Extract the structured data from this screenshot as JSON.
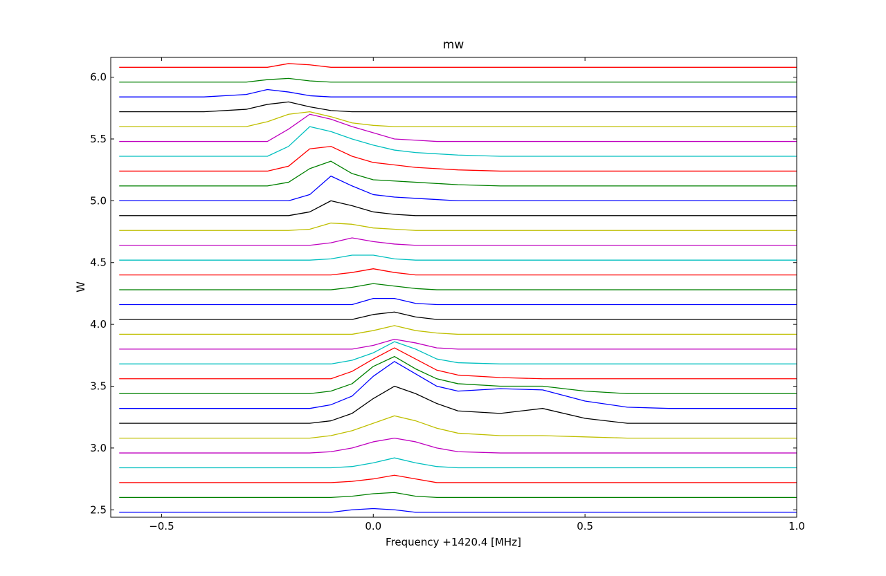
{
  "chart_data": {
    "type": "line",
    "title": "mw",
    "x_label": "Frequency +1420.4 [MHz]",
    "y_label": "W",
    "x": [
      -0.6,
      -0.5,
      -0.4,
      -0.3,
      -0.25,
      -0.2,
      -0.15,
      -0.1,
      -0.05,
      0,
      0.05,
      0.1,
      0.15,
      0.2,
      0.3,
      0.4,
      0.5,
      0.6,
      0.7,
      0.85,
      1.0
    ],
    "xlim": [
      -0.62,
      1.0
    ],
    "ylim": [
      2.44,
      6.16
    ],
    "xticks": [
      {
        "value": -0.5,
        "label": "−0.5"
      },
      {
        "value": 0,
        "label": "0.0"
      },
      0.5,
      {
        "value": 1.0,
        "label": "1.0"
      }
    ],
    "yticks": [
      2.5,
      {
        "value": 3,
        "label": "3.0"
      },
      3.5,
      {
        "value": 4,
        "label": "4.0"
      },
      4.5,
      {
        "value": 5,
        "label": "5.0"
      },
      5.5,
      {
        "value": 6,
        "label": "6.0"
      }
    ],
    "series": [
      {
        "color": "#0000ff",
        "values": [
          2.48,
          2.48,
          2.48,
          2.48,
          2.48,
          2.48,
          2.48,
          2.48,
          2.5,
          2.51,
          2.5,
          2.48,
          2.48,
          2.48,
          2.48,
          2.48,
          2.48,
          2.48,
          2.48,
          2.48,
          2.48
        ]
      },
      {
        "color": "#008000",
        "values": [
          2.6,
          2.6,
          2.6,
          2.6,
          2.6,
          2.6,
          2.6,
          2.6,
          2.61,
          2.63,
          2.64,
          2.61,
          2.6,
          2.6,
          2.6,
          2.6,
          2.6,
          2.6,
          2.6,
          2.6,
          2.6
        ]
      },
      {
        "color": "#ff0000",
        "values": [
          2.72,
          2.72,
          2.72,
          2.72,
          2.72,
          2.72,
          2.72,
          2.72,
          2.73,
          2.75,
          2.78,
          2.75,
          2.72,
          2.72,
          2.72,
          2.72,
          2.72,
          2.72,
          2.72,
          2.72,
          2.72
        ]
      },
      {
        "color": "#00bfbf",
        "values": [
          2.84,
          2.84,
          2.84,
          2.84,
          2.84,
          2.84,
          2.84,
          2.84,
          2.85,
          2.88,
          2.92,
          2.88,
          2.85,
          2.84,
          2.84,
          2.84,
          2.84,
          2.84,
          2.84,
          2.84,
          2.84
        ]
      },
      {
        "color": "#bf00bf",
        "values": [
          2.96,
          2.96,
          2.96,
          2.96,
          2.96,
          2.96,
          2.96,
          2.97,
          3.0,
          3.05,
          3.08,
          3.05,
          3.0,
          2.97,
          2.96,
          2.96,
          2.96,
          2.96,
          2.96,
          2.96,
          2.96
        ]
      },
      {
        "color": "#bfbf00",
        "values": [
          3.08,
          3.08,
          3.08,
          3.08,
          3.08,
          3.08,
          3.08,
          3.1,
          3.14,
          3.2,
          3.26,
          3.22,
          3.16,
          3.12,
          3.1,
          3.1,
          3.09,
          3.08,
          3.08,
          3.08,
          3.08
        ]
      },
      {
        "color": "#000000",
        "values": [
          3.2,
          3.2,
          3.2,
          3.2,
          3.2,
          3.2,
          3.2,
          3.22,
          3.28,
          3.4,
          3.5,
          3.44,
          3.36,
          3.3,
          3.28,
          3.32,
          3.24,
          3.2,
          3.2,
          3.2,
          3.2
        ]
      },
      {
        "color": "#0000ff",
        "values": [
          3.32,
          3.32,
          3.32,
          3.32,
          3.32,
          3.32,
          3.32,
          3.35,
          3.42,
          3.58,
          3.7,
          3.6,
          3.5,
          3.46,
          3.48,
          3.47,
          3.38,
          3.33,
          3.32,
          3.32,
          3.32
        ]
      },
      {
        "color": "#008000",
        "values": [
          3.44,
          3.44,
          3.44,
          3.44,
          3.44,
          3.44,
          3.44,
          3.46,
          3.52,
          3.66,
          3.74,
          3.64,
          3.56,
          3.52,
          3.5,
          3.5,
          3.46,
          3.44,
          3.44,
          3.44,
          3.44
        ]
      },
      {
        "color": "#ff0000",
        "values": [
          3.56,
          3.56,
          3.56,
          3.56,
          3.56,
          3.56,
          3.56,
          3.56,
          3.62,
          3.72,
          3.81,
          3.72,
          3.63,
          3.59,
          3.57,
          3.56,
          3.56,
          3.56,
          3.56,
          3.56,
          3.56
        ]
      },
      {
        "color": "#00bfbf",
        "values": [
          3.68,
          3.68,
          3.68,
          3.68,
          3.68,
          3.68,
          3.68,
          3.68,
          3.71,
          3.77,
          3.86,
          3.8,
          3.72,
          3.69,
          3.68,
          3.68,
          3.68,
          3.68,
          3.68,
          3.68,
          3.68
        ]
      },
      {
        "color": "#bf00bf",
        "values": [
          3.8,
          3.8,
          3.8,
          3.8,
          3.8,
          3.8,
          3.8,
          3.8,
          3.8,
          3.83,
          3.88,
          3.85,
          3.81,
          3.8,
          3.8,
          3.8,
          3.8,
          3.8,
          3.8,
          3.8,
          3.8
        ]
      },
      {
        "color": "#bfbf00",
        "values": [
          3.92,
          3.92,
          3.92,
          3.92,
          3.92,
          3.92,
          3.92,
          3.92,
          3.92,
          3.95,
          3.99,
          3.95,
          3.93,
          3.92,
          3.92,
          3.92,
          3.92,
          3.92,
          3.92,
          3.92,
          3.92
        ]
      },
      {
        "color": "#000000",
        "values": [
          4.04,
          4.04,
          4.04,
          4.04,
          4.04,
          4.04,
          4.04,
          4.04,
          4.04,
          4.08,
          4.1,
          4.06,
          4.04,
          4.04,
          4.04,
          4.04,
          4.04,
          4.04,
          4.04,
          4.04,
          4.04
        ]
      },
      {
        "color": "#0000ff",
        "values": [
          4.16,
          4.16,
          4.16,
          4.16,
          4.16,
          4.16,
          4.16,
          4.16,
          4.16,
          4.21,
          4.21,
          4.17,
          4.16,
          4.16,
          4.16,
          4.16,
          4.16,
          4.16,
          4.16,
          4.16,
          4.16
        ]
      },
      {
        "color": "#008000",
        "values": [
          4.28,
          4.28,
          4.28,
          4.28,
          4.28,
          4.28,
          4.28,
          4.28,
          4.3,
          4.33,
          4.31,
          4.29,
          4.28,
          4.28,
          4.28,
          4.28,
          4.28,
          4.28,
          4.28,
          4.28,
          4.28
        ]
      },
      {
        "color": "#ff0000",
        "values": [
          4.4,
          4.4,
          4.4,
          4.4,
          4.4,
          4.4,
          4.4,
          4.4,
          4.42,
          4.45,
          4.42,
          4.4,
          4.4,
          4.4,
          4.4,
          4.4,
          4.4,
          4.4,
          4.4,
          4.4,
          4.4
        ]
      },
      {
        "color": "#00bfbf",
        "values": [
          4.52,
          4.52,
          4.52,
          4.52,
          4.52,
          4.52,
          4.52,
          4.53,
          4.56,
          4.56,
          4.53,
          4.52,
          4.52,
          4.52,
          4.52,
          4.52,
          4.52,
          4.52,
          4.52,
          4.52,
          4.52
        ]
      },
      {
        "color": "#bf00bf",
        "values": [
          4.64,
          4.64,
          4.64,
          4.64,
          4.64,
          4.64,
          4.64,
          4.66,
          4.7,
          4.67,
          4.65,
          4.64,
          4.64,
          4.64,
          4.64,
          4.64,
          4.64,
          4.64,
          4.64,
          4.64,
          4.64
        ]
      },
      {
        "color": "#bfbf00",
        "values": [
          4.76,
          4.76,
          4.76,
          4.76,
          4.76,
          4.76,
          4.77,
          4.82,
          4.81,
          4.78,
          4.77,
          4.76,
          4.76,
          4.76,
          4.76,
          4.76,
          4.76,
          4.76,
          4.76,
          4.76,
          4.76
        ]
      },
      {
        "color": "#000000",
        "values": [
          4.88,
          4.88,
          4.88,
          4.88,
          4.88,
          4.88,
          4.91,
          5.0,
          4.96,
          4.91,
          4.89,
          4.88,
          4.88,
          4.88,
          4.88,
          4.88,
          4.88,
          4.88,
          4.88,
          4.88,
          4.88
        ]
      },
      {
        "color": "#0000ff",
        "values": [
          5.0,
          5.0,
          5.0,
          5.0,
          5.0,
          5.0,
          5.05,
          5.2,
          5.12,
          5.05,
          5.03,
          5.02,
          5.01,
          5.0,
          5.0,
          5.0,
          5.0,
          5.0,
          5.0,
          5.0,
          5.0
        ]
      },
      {
        "color": "#008000",
        "values": [
          5.12,
          5.12,
          5.12,
          5.12,
          5.12,
          5.15,
          5.26,
          5.32,
          5.22,
          5.17,
          5.16,
          5.15,
          5.14,
          5.13,
          5.12,
          5.12,
          5.12,
          5.12,
          5.12,
          5.12,
          5.12
        ]
      },
      {
        "color": "#ff0000",
        "values": [
          5.24,
          5.24,
          5.24,
          5.24,
          5.24,
          5.28,
          5.42,
          5.44,
          5.36,
          5.31,
          5.29,
          5.27,
          5.26,
          5.25,
          5.24,
          5.24,
          5.24,
          5.24,
          5.24,
          5.24,
          5.24
        ]
      },
      {
        "color": "#00bfbf",
        "values": [
          5.36,
          5.36,
          5.36,
          5.36,
          5.36,
          5.44,
          5.6,
          5.56,
          5.5,
          5.45,
          5.41,
          5.39,
          5.38,
          5.37,
          5.36,
          5.36,
          5.36,
          5.36,
          5.36,
          5.36,
          5.36
        ]
      },
      {
        "color": "#bf00bf",
        "values": [
          5.48,
          5.48,
          5.48,
          5.48,
          5.48,
          5.58,
          5.7,
          5.66,
          5.6,
          5.55,
          5.5,
          5.49,
          5.48,
          5.48,
          5.48,
          5.48,
          5.48,
          5.48,
          5.48,
          5.48,
          5.48
        ]
      },
      {
        "color": "#bfbf00",
        "values": [
          5.6,
          5.6,
          5.6,
          5.6,
          5.64,
          5.7,
          5.72,
          5.68,
          5.63,
          5.61,
          5.6,
          5.6,
          5.6,
          5.6,
          5.6,
          5.6,
          5.6,
          5.6,
          5.6,
          5.6,
          5.6
        ]
      },
      {
        "color": "#000000",
        "values": [
          5.72,
          5.72,
          5.72,
          5.74,
          5.78,
          5.8,
          5.76,
          5.73,
          5.72,
          5.72,
          5.72,
          5.72,
          5.72,
          5.72,
          5.72,
          5.72,
          5.72,
          5.72,
          5.72,
          5.72,
          5.72
        ]
      },
      {
        "color": "#0000ff",
        "values": [
          5.84,
          5.84,
          5.84,
          5.86,
          5.9,
          5.88,
          5.85,
          5.84,
          5.84,
          5.84,
          5.84,
          5.84,
          5.84,
          5.84,
          5.84,
          5.84,
          5.84,
          5.84,
          5.84,
          5.84,
          5.84
        ]
      },
      {
        "color": "#008000",
        "values": [
          5.96,
          5.96,
          5.96,
          5.96,
          5.98,
          5.99,
          5.97,
          5.96,
          5.96,
          5.96,
          5.96,
          5.96,
          5.96,
          5.96,
          5.96,
          5.96,
          5.96,
          5.96,
          5.96,
          5.96,
          5.96
        ]
      },
      {
        "color": "#ff0000",
        "values": [
          6.08,
          6.08,
          6.08,
          6.08,
          6.08,
          6.11,
          6.1,
          6.08,
          6.08,
          6.08,
          6.08,
          6.08,
          6.08,
          6.08,
          6.08,
          6.08,
          6.08,
          6.08,
          6.08,
          6.08,
          6.08
        ]
      }
    ]
  }
}
